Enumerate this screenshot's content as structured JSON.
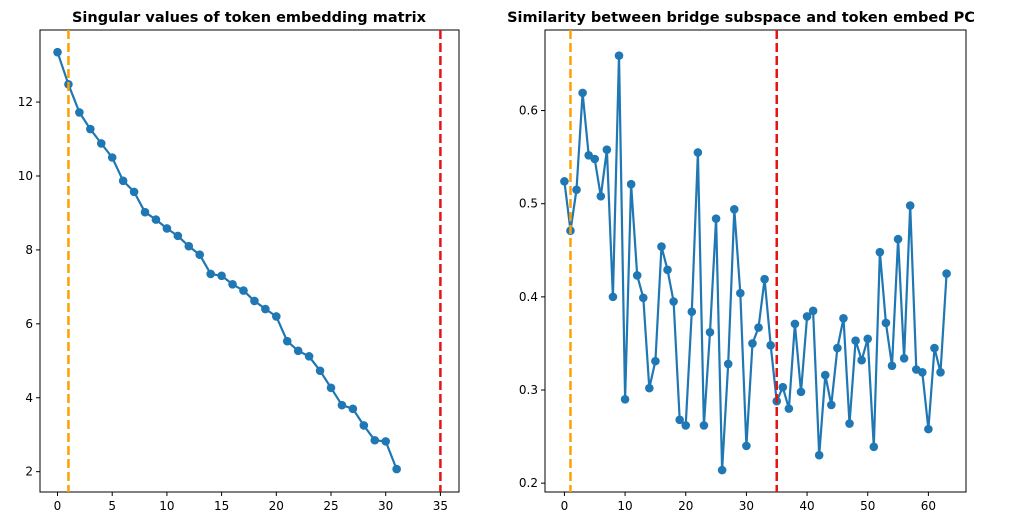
{
  "colors": {
    "series": "#1f77b4",
    "orange_line": "#ff9f00",
    "red_line": "#e41414"
  },
  "chart_data": [
    {
      "type": "line",
      "title": "Singular values of token embedding matrix",
      "xlabel": "",
      "ylabel": "",
      "xlim": [
        -1.6,
        36.7
      ],
      "ylim": [
        1.45,
        13.95
      ],
      "xticks": [
        0,
        5,
        10,
        15,
        20,
        25,
        30,
        35
      ],
      "yticks": [
        2,
        4,
        6,
        8,
        10,
        12
      ],
      "grid": false,
      "vlines": [
        {
          "x": 1,
          "color": "orange",
          "style": "dashed"
        },
        {
          "x": 35,
          "color": "red",
          "style": "dashed"
        }
      ],
      "series": [
        {
          "x": [
            0,
            1,
            2,
            3,
            4,
            5,
            6,
            7,
            8,
            9,
            10,
            11,
            12,
            13,
            14,
            15,
            16,
            17,
            18,
            19,
            20,
            21,
            22,
            23,
            24,
            25,
            26,
            27,
            28,
            29,
            30,
            31
          ],
          "values": [
            13.35,
            12.48,
            11.72,
            11.27,
            10.88,
            10.5,
            9.87,
            9.57,
            9.02,
            8.82,
            8.58,
            8.38,
            8.1,
            7.87,
            7.35,
            7.3,
            7.07,
            6.9,
            6.62,
            6.4,
            6.2,
            5.53,
            5.27,
            5.12,
            4.73,
            4.27,
            3.8,
            3.7,
            3.25,
            2.85,
            2.82,
            2.07
          ]
        }
      ]
    },
    {
      "type": "line",
      "title": "Similarity between bridge subspace and token embed PC",
      "xlabel": "",
      "ylabel": "",
      "xlim": [
        -3.2,
        66.2
      ],
      "ylim": [
        0.1905,
        0.6865
      ],
      "xticks": [
        0,
        10,
        20,
        30,
        40,
        50,
        60
      ],
      "yticks": [
        "0.2",
        "0.3",
        "0.4",
        "0.5",
        "0.6"
      ],
      "grid": false,
      "vlines": [
        {
          "x": 1,
          "color": "orange",
          "style": "dashed"
        },
        {
          "x": 35,
          "color": "red",
          "style": "dashed"
        }
      ],
      "series": [
        {
          "x": [
            0,
            1,
            2,
            3,
            4,
            5,
            6,
            7,
            8,
            9,
            10,
            11,
            12,
            13,
            14,
            15,
            16,
            17,
            18,
            19,
            20,
            21,
            22,
            23,
            24,
            25,
            26,
            27,
            28,
            29,
            30,
            31,
            32,
            33,
            34,
            35,
            36,
            37,
            38,
            39,
            40,
            41,
            42,
            43,
            44,
            45,
            46,
            47,
            48,
            49,
            50,
            51,
            52,
            53,
            54,
            55,
            56,
            57,
            58,
            59,
            60,
            61,
            62,
            63
          ],
          "values": [
            0.524,
            0.471,
            0.515,
            0.619,
            0.552,
            0.548,
            0.508,
            0.558,
            0.4,
            0.659,
            0.29,
            0.521,
            0.423,
            0.399,
            0.302,
            0.331,
            0.454,
            0.429,
            0.395,
            0.268,
            0.262,
            0.384,
            0.555,
            0.262,
            0.362,
            0.484,
            0.214,
            0.328,
            0.494,
            0.404,
            0.24,
            0.35,
            0.367,
            0.419,
            0.348,
            0.288,
            0.303,
            0.28,
            0.371,
            0.298,
            0.379,
            0.385,
            0.23,
            0.316,
            0.284,
            0.345,
            0.377,
            0.264,
            0.353,
            0.332,
            0.355,
            0.239,
            0.448,
            0.372,
            0.326,
            0.462,
            0.334,
            0.498,
            0.322,
            0.319,
            0.258,
            0.345,
            0.319,
            0.425
          ]
        }
      ]
    }
  ]
}
